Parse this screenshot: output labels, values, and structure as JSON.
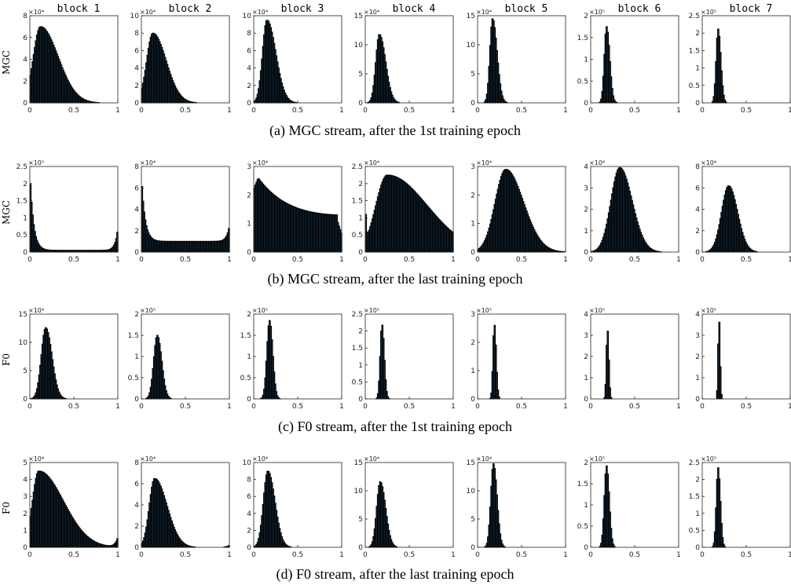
{
  "block_titles": [
    "block 1",
    "block 2",
    "block 3",
    "block 4",
    "block 5",
    "block 6",
    "block 7"
  ],
  "chart_data": [
    {
      "type": "bar",
      "caption": "(a) MGC stream, after the 1st training epoch",
      "ylabel": "MGC",
      "show_titles": true,
      "xlim": [
        0,
        1
      ],
      "xticks": [
        "0",
        "0.5",
        "1"
      ],
      "panels": [
        {
          "title": "block 1",
          "ylim": [
            0,
            8
          ],
          "yticks": [
            0,
            2,
            4,
            6,
            8
          ],
          "multiplier": "×10⁴",
          "mode": 0.12,
          "peak": 7.0,
          "left_width": 0.08,
          "right_width": 0.2,
          "edge_left": 0,
          "edge_right": 0
        },
        {
          "title": "block 2",
          "ylim": [
            0,
            10
          ],
          "yticks": [
            0,
            2,
            4,
            6,
            8,
            10
          ],
          "multiplier": "×10⁴",
          "mode": 0.13,
          "peak": 8.0,
          "left_width": 0.07,
          "right_width": 0.15,
          "edge_left": 0,
          "edge_right": 0
        },
        {
          "title": "block 3",
          "ylim": [
            0,
            10
          ],
          "yticks": [
            0,
            2,
            4,
            6,
            8,
            10
          ],
          "multiplier": "×10⁴",
          "mode": 0.15,
          "peak": 9.5,
          "left_width": 0.05,
          "right_width": 0.1,
          "edge_left": 0,
          "edge_right": 0
        },
        {
          "title": "block 4",
          "ylim": [
            0,
            15
          ],
          "yticks": [
            0,
            5,
            10,
            15
          ],
          "multiplier": "×10⁴",
          "mode": 0.16,
          "peak": 11.8,
          "left_width": 0.04,
          "right_width": 0.07,
          "edge_left": 0,
          "edge_right": 0
        },
        {
          "title": "block 5",
          "ylim": [
            0,
            15
          ],
          "yticks": [
            0,
            5,
            10,
            15
          ],
          "multiplier": "×10⁴",
          "mode": 0.17,
          "peak": 14.5,
          "left_width": 0.03,
          "right_width": 0.05,
          "edge_left": 0,
          "edge_right": 0
        },
        {
          "title": "block 6",
          "ylim": [
            0,
            2
          ],
          "yticks": [
            0,
            0.5,
            1,
            1.5,
            2
          ],
          "multiplier": "×10⁵",
          "mode": 0.18,
          "peak": 1.75,
          "left_width": 0.025,
          "right_width": 0.035,
          "edge_left": 0,
          "edge_right": 0
        },
        {
          "title": "block 7",
          "ylim": [
            0,
            2.5
          ],
          "yticks": [
            0,
            0.5,
            1,
            1.5,
            2,
            2.5
          ],
          "multiplier": "×10⁵",
          "mode": 0.18,
          "peak": 2.12,
          "left_width": 0.022,
          "right_width": 0.03,
          "edge_left": 0,
          "edge_right": 0
        }
      ]
    },
    {
      "type": "bar",
      "caption": "(b) MGC stream, after the last training epoch",
      "ylabel": "MGC",
      "show_titles": false,
      "xlim": [
        0,
        1
      ],
      "xticks": [
        "0",
        "0.5",
        "1"
      ],
      "panels": [
        {
          "title": "block 1",
          "ylim": [
            0,
            2.5
          ],
          "yticks": [
            0,
            0.5,
            1,
            1.5,
            2,
            2.5
          ],
          "multiplier": "×10⁵",
          "shape": "u",
          "edge_left": 2.3,
          "floor": 0.05,
          "edge_right": 0.7
        },
        {
          "title": "block 2",
          "ylim": [
            0,
            8
          ],
          "yticks": [
            0,
            2,
            4,
            6,
            8
          ],
          "multiplier": "×10⁴",
          "shape": "u",
          "edge_left": 7.0,
          "floor": 1.0,
          "edge_right": 2.5
        },
        {
          "title": "block 3",
          "ylim": [
            0,
            3
          ],
          "yticks": [
            0,
            1,
            2,
            3
          ],
          "multiplier": "×10⁴",
          "shape": "decay",
          "start": 2.2,
          "peak": 2.6,
          "peak_at": 0.05,
          "plateau": 1.2,
          "drop_at": 0.95,
          "end": 0.6
        },
        {
          "title": "block 4",
          "ylim": [
            0,
            2.5
          ],
          "yticks": [
            0,
            0.5,
            1,
            1.5,
            2,
            2.5
          ],
          "multiplier": "×10⁴",
          "mode": 0.25,
          "peak": 2.25,
          "left_width": 0.13,
          "right_width": 0.45,
          "edge_left": 1.5,
          "edge_right": 0
        },
        {
          "title": "block 5",
          "ylim": [
            0,
            3
          ],
          "yticks": [
            0,
            1,
            2,
            3
          ],
          "multiplier": "×10⁴",
          "mode": 0.32,
          "peak": 2.9,
          "left_width": 0.12,
          "right_width": 0.2,
          "edge_left": 0,
          "edge_right": 0
        },
        {
          "title": "block 6",
          "ylim": [
            0,
            4
          ],
          "yticks": [
            0,
            1,
            2,
            3,
            4
          ],
          "multiplier": "×10⁴",
          "mode": 0.33,
          "peak": 3.95,
          "left_width": 0.1,
          "right_width": 0.14,
          "edge_left": 0,
          "edge_right": 0
        },
        {
          "title": "block 7",
          "ylim": [
            0,
            8
          ],
          "yticks": [
            0,
            2,
            4,
            6,
            8
          ],
          "multiplier": "×10⁴",
          "mode": 0.3,
          "peak": 6.2,
          "left_width": 0.08,
          "right_width": 0.1,
          "edge_left": 0,
          "edge_right": 0
        }
      ]
    },
    {
      "type": "bar",
      "caption": "(c) F0 stream, after the 1st training epoch",
      "ylabel": "F0",
      "show_titles": false,
      "xlim": [
        0,
        1
      ],
      "xticks": [
        "0",
        "0.5",
        "1"
      ],
      "panels": [
        {
          "title": "block 1",
          "ylim": [
            0,
            15
          ],
          "yticks": [
            0,
            5,
            10,
            15
          ],
          "multiplier": "×10⁴",
          "mode": 0.18,
          "peak": 12.6,
          "left_width": 0.05,
          "right_width": 0.07,
          "edge_left": 0,
          "edge_right": 0
        },
        {
          "title": "block 2",
          "ylim": [
            0,
            2
          ],
          "yticks": [
            0,
            0.5,
            1,
            1.5,
            2
          ],
          "multiplier": "×10⁵",
          "mode": 0.18,
          "peak": 1.5,
          "left_width": 0.04,
          "right_width": 0.05,
          "edge_left": 0,
          "edge_right": 0
        },
        {
          "title": "block 3",
          "ylim": [
            0,
            2
          ],
          "yticks": [
            0,
            0.5,
            1,
            1.5,
            2
          ],
          "multiplier": "×10⁵",
          "mode": 0.18,
          "peak": 1.85,
          "left_width": 0.03,
          "right_width": 0.035,
          "edge_left": 0,
          "edge_right": 0
        },
        {
          "title": "block 4",
          "ylim": [
            0,
            2.5
          ],
          "yticks": [
            0,
            0.5,
            1,
            1.5,
            2,
            2.5
          ],
          "multiplier": "×10⁵",
          "mode": 0.19,
          "peak": 2.2,
          "left_width": 0.02,
          "right_width": 0.025,
          "edge_left": 0,
          "edge_right": 0
        },
        {
          "title": "block 5",
          "ylim": [
            0,
            3
          ],
          "yticks": [
            0,
            1,
            2,
            3
          ],
          "multiplier": "×10⁵",
          "mode": 0.19,
          "peak": 2.65,
          "left_width": 0.015,
          "right_width": 0.02,
          "edge_left": 0,
          "edge_right": 0
        },
        {
          "title": "block 6",
          "ylim": [
            0,
            4
          ],
          "yticks": [
            0,
            1,
            2,
            3,
            4
          ],
          "multiplier": "×10⁵",
          "mode": 0.19,
          "peak": 3.3,
          "left_width": 0.012,
          "right_width": 0.015,
          "edge_left": 0,
          "edge_right": 0
        },
        {
          "title": "block 7",
          "ylim": [
            0,
            4
          ],
          "yticks": [
            0,
            1,
            2,
            3,
            4
          ],
          "multiplier": "×10⁵",
          "mode": 0.19,
          "peak": 3.8,
          "left_width": 0.01,
          "right_width": 0.012,
          "edge_left": 0,
          "edge_right": 0
        }
      ]
    },
    {
      "type": "bar",
      "caption": "(d) F0 stream, after the last training epoch",
      "ylabel": "F0",
      "show_titles": false,
      "xlim": [
        0,
        1
      ],
      "xticks": [
        "0",
        "0.5",
        "1"
      ],
      "panels": [
        {
          "title": "block 1",
          "ylim": [
            0,
            5
          ],
          "yticks": [
            0,
            1,
            2,
            3,
            4,
            5
          ],
          "multiplier": "×10⁴",
          "mode": 0.1,
          "peak": 4.5,
          "left_width": 0.07,
          "right_width": 0.28,
          "edge_left": 2.5,
          "edge_right": 0.6
        },
        {
          "title": "block 2",
          "ylim": [
            0,
            8
          ],
          "yticks": [
            0,
            2,
            4,
            6,
            8
          ],
          "multiplier": "×10⁴",
          "mode": 0.15,
          "peak": 6.5,
          "left_width": 0.06,
          "right_width": 0.14,
          "edge_left": 0,
          "edge_right": 0.2
        },
        {
          "title": "block 3",
          "ylim": [
            0,
            10
          ],
          "yticks": [
            0,
            2,
            4,
            6,
            8,
            10
          ],
          "multiplier": "×10⁴",
          "mode": 0.16,
          "peak": 9.0,
          "left_width": 0.05,
          "right_width": 0.08,
          "edge_left": 0,
          "edge_right": 0
        },
        {
          "title": "block 4",
          "ylim": [
            0,
            15
          ],
          "yticks": [
            0,
            5,
            10,
            15
          ],
          "multiplier": "×10⁴",
          "mode": 0.17,
          "peak": 11.6,
          "left_width": 0.04,
          "right_width": 0.06,
          "edge_left": 0,
          "edge_right": 0
        },
        {
          "title": "block 5",
          "ylim": [
            0,
            15
          ],
          "yticks": [
            0,
            5,
            10,
            15
          ],
          "multiplier": "×10⁴",
          "mode": 0.18,
          "peak": 14.8,
          "left_width": 0.03,
          "right_width": 0.04,
          "edge_left": 0,
          "edge_right": 0
        },
        {
          "title": "block 6",
          "ylim": [
            0,
            2
          ],
          "yticks": [
            0,
            0.5,
            1,
            1.5,
            2
          ],
          "multiplier": "×10⁵",
          "mode": 0.18,
          "peak": 1.92,
          "left_width": 0.025,
          "right_width": 0.03,
          "edge_left": 0,
          "edge_right": 0
        },
        {
          "title": "block 7",
          "ylim": [
            0,
            2.5
          ],
          "yticks": [
            0,
            0.5,
            1,
            1.5,
            2,
            2.5
          ],
          "multiplier": "×10⁵",
          "mode": 0.18,
          "peak": 2.35,
          "left_width": 0.02,
          "right_width": 0.025,
          "edge_left": 0,
          "edge_right": 0
        }
      ]
    }
  ]
}
